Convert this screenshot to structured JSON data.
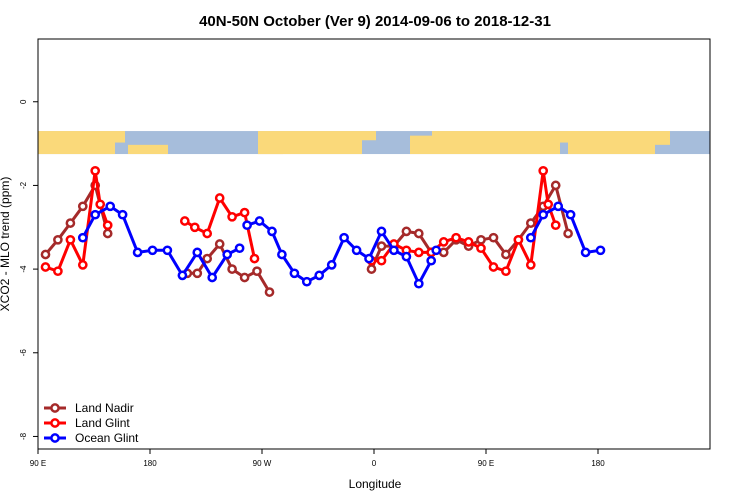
{
  "chart_data": {
    "type": "line",
    "title": "40N-50N October (Ver 9)   2014-09-06 to 2018-12-31",
    "xlabel": "Longitude",
    "ylabel": "XCO2 - MLO trend (ppm)",
    "xlim": [
      -90,
      180
    ],
    "ylim": [
      -8.3,
      1.5
    ],
    "x_ticks": [
      {
        "value": -90,
        "label": "90 E"
      },
      {
        "value": -45,
        "label": "180"
      },
      {
        "value": 0,
        "label": "90 W"
      },
      {
        "value": 45,
        "label": "0"
      },
      {
        "value": 90,
        "label": "90 E"
      },
      {
        "value": 135,
        "label": "180"
      }
    ],
    "y_ticks": [
      {
        "value": 0,
        "label": "0"
      },
      {
        "value": -2,
        "label": "-2"
      },
      {
        "value": -4,
        "label": "-4"
      },
      {
        "value": -6,
        "label": "-6"
      },
      {
        "value": -8,
        "label": "-8"
      }
    ],
    "map_strip": {
      "y_top": -0.7,
      "y_bottom": -1.25,
      "ocean_color": "#a6bddb",
      "land_color": "#fad97a"
    },
    "legend_position": "bottom-left",
    "series": [
      {
        "name": "Land Nadir",
        "color": "#a52a2a",
        "segments": [
          [
            [
              -87,
              -3.65
            ],
            [
              -82,
              -3.3
            ],
            [
              -77,
              -2.9
            ],
            [
              -72,
              -2.5
            ],
            [
              -67,
              -2.0
            ],
            [
              -62,
              -3.15
            ]
          ],
          [
            [
              -30,
              -4.1
            ],
            [
              -26,
              -4.1
            ],
            [
              -22,
              -3.75
            ],
            [
              -17,
              -3.4
            ],
            [
              -12,
              -4.0
            ],
            [
              -7,
              -4.2
            ],
            [
              -2,
              -4.05
            ],
            [
              3,
              -4.55
            ]
          ],
          [
            [
              44,
              -4.0
            ],
            [
              48,
              -3.45
            ],
            [
              53,
              -3.45
            ],
            [
              58,
              -3.1
            ],
            [
              63,
              -3.15
            ],
            [
              68,
              -3.6
            ],
            [
              73,
              -3.6
            ],
            [
              78,
              -3.3
            ],
            [
              83,
              -3.45
            ],
            [
              88,
              -3.3
            ],
            [
              93,
              -3.25
            ],
            [
              98,
              -3.65
            ],
            [
              103,
              -3.3
            ],
            [
              108,
              -2.9
            ],
            [
              113,
              -2.5
            ],
            [
              118,
              -2.0
            ],
            [
              123,
              -3.15
            ]
          ]
        ]
      },
      {
        "name": "Land Glint",
        "color": "#ff0000",
        "segments": [
          [
            [
              -87,
              -3.95
            ],
            [
              -82,
              -4.05
            ],
            [
              -77,
              -3.3
            ],
            [
              -72,
              -3.9
            ],
            [
              -67,
              -1.65
            ],
            [
              -65,
              -2.45
            ],
            [
              -62,
              -2.95
            ]
          ],
          [
            [
              -31,
              -2.85
            ],
            [
              -27,
              -3.0
            ],
            [
              -22,
              -3.15
            ],
            [
              -17,
              -2.3
            ],
            [
              -12,
              -2.75
            ],
            [
              -7,
              -2.65
            ],
            [
              -3,
              -3.75
            ]
          ],
          [
            [
              44,
              -3.8
            ],
            [
              48,
              -3.8
            ],
            [
              53,
              -3.4
            ],
            [
              58,
              -3.55
            ],
            [
              63,
              -3.6
            ],
            [
              68,
              -3.6
            ],
            [
              73,
              -3.35
            ],
            [
              78,
              -3.25
            ],
            [
              83,
              -3.35
            ],
            [
              88,
              -3.5
            ],
            [
              93,
              -3.95
            ],
            [
              98,
              -4.05
            ],
            [
              103,
              -3.3
            ],
            [
              108,
              -3.9
            ],
            [
              113,
              -1.65
            ],
            [
              115,
              -2.45
            ],
            [
              118,
              -2.95
            ]
          ]
        ]
      },
      {
        "name": "Ocean Glint",
        "color": "#0000ff",
        "segments": [
          [
            [
              -72,
              -3.25
            ],
            [
              -67,
              -2.7
            ],
            [
              -61,
              -2.5
            ],
            [
              -56,
              -2.7
            ],
            [
              -50,
              -3.6
            ],
            [
              -44,
              -3.55
            ],
            [
              -38,
              -3.55
            ],
            [
              -32,
              -4.15
            ],
            [
              -26,
              -3.6
            ],
            [
              -20,
              -4.2
            ],
            [
              -14,
              -3.65
            ],
            [
              -9,
              -3.5
            ]
          ],
          [
            [
              -6,
              -2.95
            ],
            [
              -1,
              -2.85
            ],
            [
              4,
              -3.1
            ],
            [
              8,
              -3.65
            ],
            [
              13,
              -4.1
            ],
            [
              18,
              -4.3
            ],
            [
              23,
              -4.15
            ],
            [
              28,
              -3.9
            ],
            [
              33,
              -3.25
            ],
            [
              38,
              -3.55
            ],
            [
              43,
              -3.75
            ],
            [
              48,
              -3.1
            ],
            [
              53,
              -3.55
            ],
            [
              58,
              -3.7
            ],
            [
              63,
              -4.35
            ],
            [
              68,
              -3.8
            ]
          ],
          [
            [
              70,
              -3.55
            ]
          ],
          [
            [
              108,
              -3.25
            ],
            [
              113,
              -2.7
            ],
            [
              119,
              -2.5
            ],
            [
              124,
              -2.7
            ],
            [
              130,
              -3.6
            ],
            [
              136,
              -3.55
            ]
          ]
        ]
      }
    ]
  }
}
